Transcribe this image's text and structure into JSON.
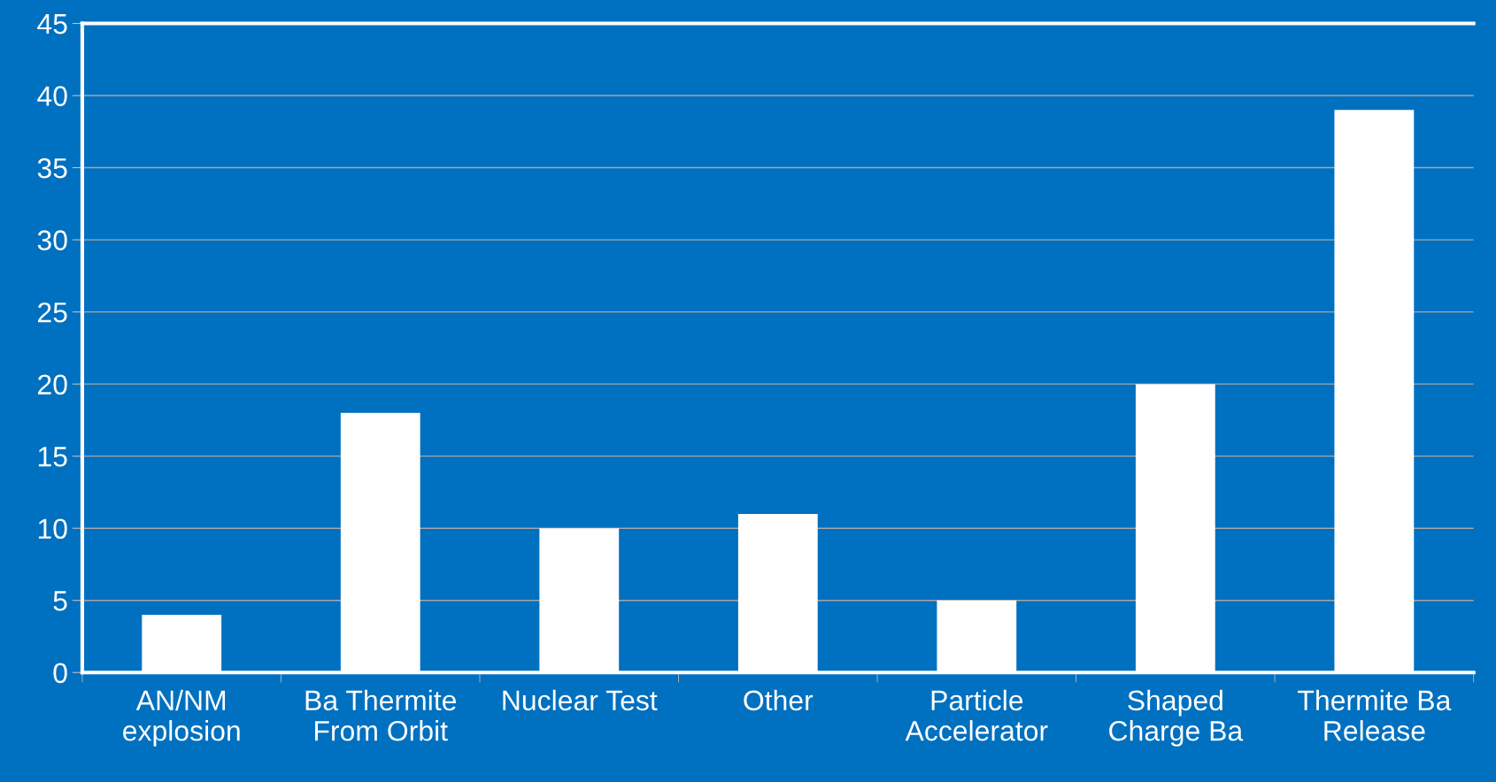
{
  "chart_data": {
    "type": "bar",
    "categories": [
      "AN/NM\nexplosion",
      "Ba Thermite\nFrom Orbit",
      "Nuclear Test",
      "Other",
      "Particle\nAccelerator",
      "Shaped\nCharge Ba",
      "Thermite Ba\nRelease"
    ],
    "values": [
      4,
      18,
      10,
      11,
      5,
      20,
      39
    ],
    "color": "#ffffff",
    "ylim": [
      0,
      45
    ],
    "yticks": [
      0,
      5,
      10,
      15,
      20,
      25,
      30,
      35,
      40,
      45
    ],
    "grid": "y"
  }
}
